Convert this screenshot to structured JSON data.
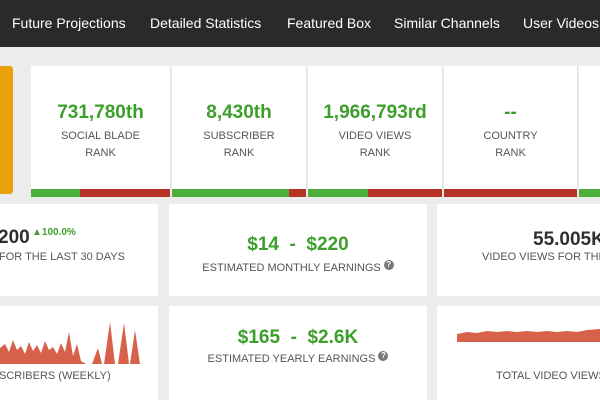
{
  "nav": {
    "items": [
      {
        "label": "Future Projections"
      },
      {
        "label": "Detailed Statistics"
      },
      {
        "label": "Featured Box"
      },
      {
        "label": "Similar Channels"
      },
      {
        "label": "User Videos"
      }
    ]
  },
  "ranks": [
    {
      "value": "731,780th",
      "label_line1": "SOCIAL BLADE",
      "label_line2": "RANK",
      "green_fraction": 0.35
    },
    {
      "value": "8,430th",
      "label_line1": "SUBSCRIBER",
      "label_line2": "RANK",
      "green_fraction": 0.87
    },
    {
      "value": "1,966,793rd",
      "label_line1": "VIDEO VIEWS",
      "label_line2": "RANK",
      "green_fraction": 0.45
    },
    {
      "value": "--",
      "label_line1": "COUNTRY",
      "label_line2": "RANK",
      "green_fraction": 0.0
    }
  ],
  "subscribers_card": {
    "value": "200",
    "delta": "100.0%",
    "label": "FOR THE LAST 30 DAYS"
  },
  "monthly_earnings": {
    "value": "$14  -  $220",
    "label": "ESTIMATED MONTHLY EARNINGS"
  },
  "views_card": {
    "value": "55.005K",
    "label": "VIDEO VIEWS FOR THE L"
  },
  "sparkline_subscribers": {
    "label": "SCRIBERS (WEEKLY)"
  },
  "yearly_earnings": {
    "value": "$165  -  $2.6K",
    "label": "ESTIMATED YEARLY EARNINGS"
  },
  "sparkline_views": {
    "label": "TOTAL VIDEO VIEWS"
  },
  "help_glyph": "?",
  "delta_arrow": "▲",
  "colors": {
    "accent_green": "#3d9f2b",
    "bar_red": "#b63325",
    "chart_red": "#d8614b",
    "nav_bg": "#2a2a2a",
    "orange": "#e8a10a"
  }
}
